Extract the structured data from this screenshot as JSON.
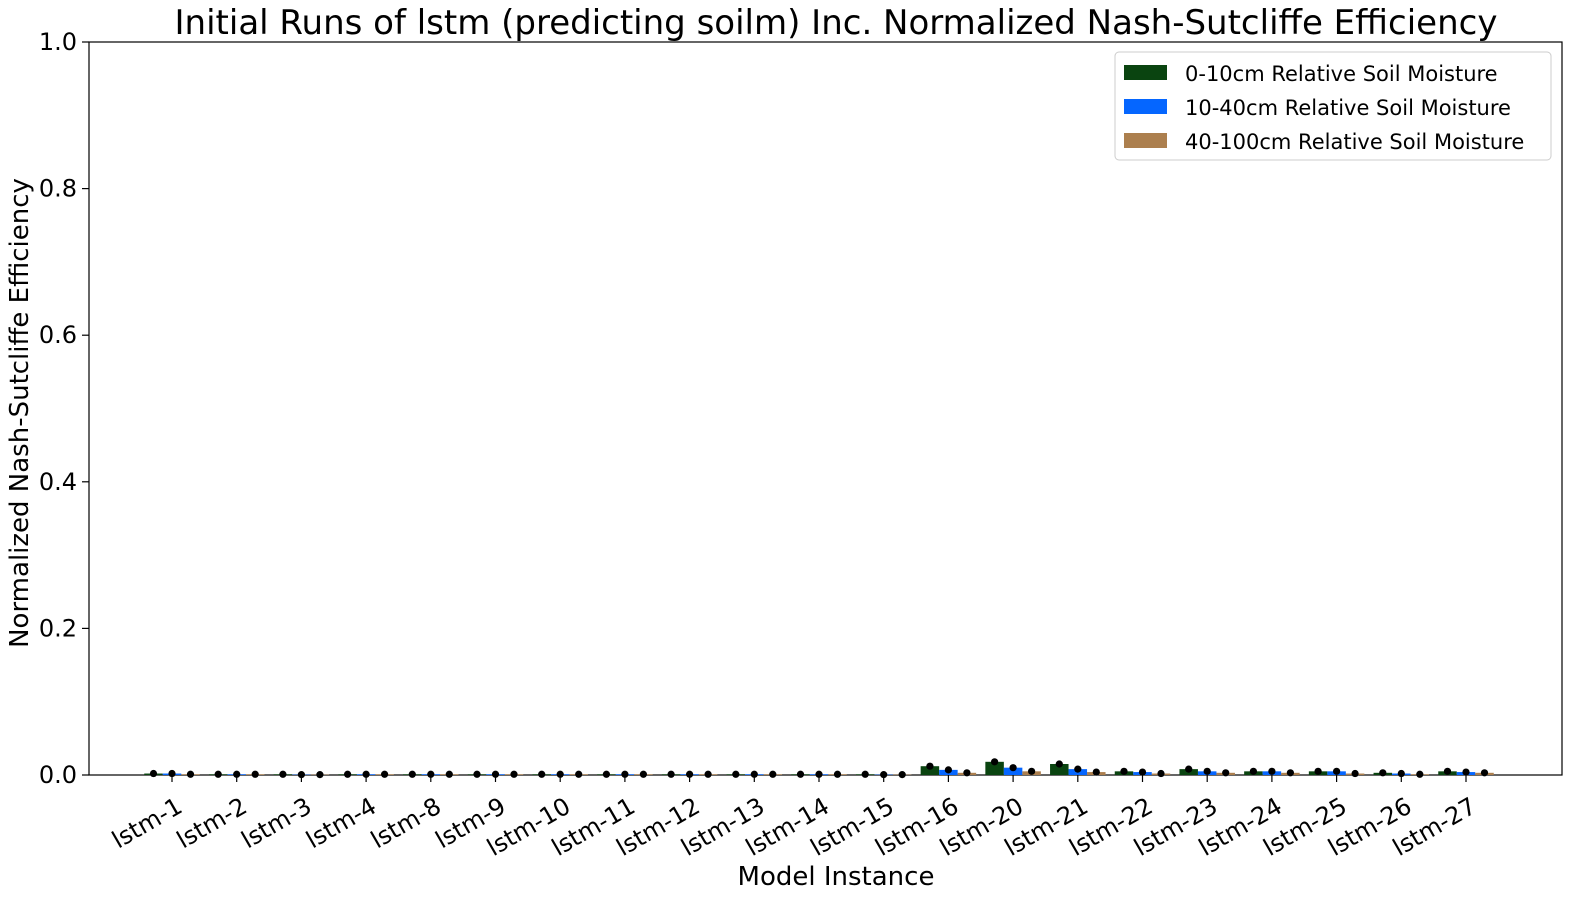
{
  "chart_data": {
    "type": "bar",
    "title": "Initial Runs of lstm (predicting soilm) Inc. Normalized Nash-Sutcliffe Efficiency",
    "xlabel": "Model Instance",
    "ylabel": "Normalized Nash-Sutcliffe Efficiency",
    "ylim": [
      0,
      1.0
    ],
    "yticks": [
      "0.0",
      "0.2",
      "0.4",
      "0.6",
      "0.8",
      "1.0"
    ],
    "grid": false,
    "legend_position": "top-right",
    "categories": [
      "lstm-1",
      "lstm-2",
      "lstm-3",
      "lstm-4",
      "lstm-8",
      "lstm-9",
      "lstm-10",
      "lstm-11",
      "lstm-12",
      "lstm-13",
      "lstm-14",
      "lstm-15",
      "lstm-16",
      "lstm-20",
      "lstm-21",
      "lstm-22",
      "lstm-23",
      "lstm-24",
      "lstm-25",
      "lstm-26",
      "lstm-27"
    ],
    "series": [
      {
        "name": "0-10cm Relative Soil Moisture",
        "color": "#0a4410",
        "values": [
          0.002,
          0.001,
          0.001,
          0.001,
          0.001,
          0.001,
          0.001,
          0.001,
          0.001,
          0.001,
          0.001,
          0.001,
          0.012,
          0.018,
          0.015,
          0.005,
          0.008,
          0.005,
          0.005,
          0.003,
          0.005
        ]
      },
      {
        "name": "10-40cm Relative Soil Moisture",
        "color": "#0566ff",
        "values": [
          0.002,
          0.001,
          0.0005,
          0.001,
          0.001,
          0.001,
          0.001,
          0.001,
          0.001,
          0.001,
          0.001,
          0.0005,
          0.007,
          0.01,
          0.008,
          0.004,
          0.005,
          0.005,
          0.005,
          0.002,
          0.004
        ]
      },
      {
        "name": "40-100cm Relative Soil Moisture",
        "color": "#ac7f4e",
        "values": [
          0.001,
          0.001,
          0.0005,
          0.001,
          0.001,
          0.001,
          0.001,
          0.001,
          0.001,
          0.001,
          0.001,
          0.0005,
          0.003,
          0.005,
          0.004,
          0.002,
          0.003,
          0.003,
          0.002,
          0.001,
          0.003
        ]
      }
    ]
  }
}
